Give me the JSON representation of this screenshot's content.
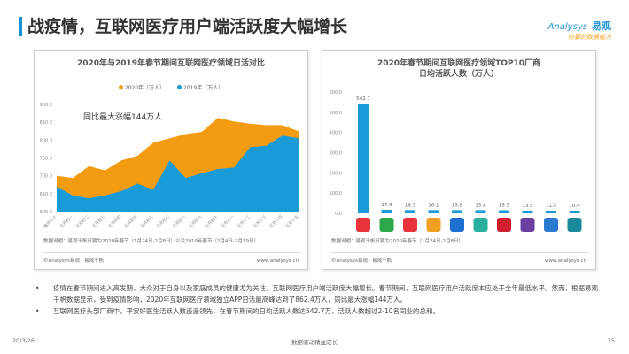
{
  "title": "战疫情，互联网医疗用户端活跃度大幅增长",
  "logo": {
    "line1": "Analysys",
    "brand": "易观",
    "tagline": "你要的数据能力"
  },
  "colors": {
    "accent": "#1a8fd6",
    "series_2020": "#f39c12",
    "series_2019": "#1a9ad6",
    "bar": "#1a9ad6"
  },
  "chart_data": [
    {
      "type": "area",
      "title": "2020年与2019年春节期间互联网医疗领域日活对比",
      "categories": [
        "腊月三十",
        "正月初一",
        "正月初二",
        "正月初三",
        "正月初四",
        "正月初五",
        "正月初六",
        "正月初七",
        "正月初八",
        "正月初九",
        "正月初十",
        "正月十一",
        "正月十二",
        "正月十三",
        "正月十四",
        "正月十五"
      ],
      "series": [
        {
          "name": "2020年（万人）",
          "values": [
            700,
            694,
            727,
            715,
            743,
            756,
            793,
            805,
            817,
            823,
            862.4,
            852,
            846,
            842,
            842,
            825
          ]
        },
        {
          "name": "2019年（万人）",
          "values": [
            670,
            645,
            637,
            645,
            657,
            678,
            661,
            743,
            694,
            707,
            719,
            723,
            780,
            784,
            813,
            805
          ]
        }
      ],
      "ylim": [
        600,
        900
      ],
      "yticks": [
        "600.0",
        "650.0",
        "700.0",
        "750.0",
        "800.0",
        "850.0",
        "900.0"
      ],
      "annotation": "同比最大涨幅144万人",
      "legend": "top",
      "grid": false,
      "note": "数据说明：易观千帆日期为2020年春节（1月24日-2月8日）以及2019年春节（2月4日-2月19日）",
      "source": "©Analysys易观 · 易观千帆",
      "url": "www.analysys.cn"
    },
    {
      "type": "bar",
      "title": "2020年春节期间互联网医疗领域TOP10厂商",
      "subtitle": "日均活跃人数（万人）",
      "values": [
        542.7,
        17.4,
        16.3,
        16.1,
        15.8,
        15.8,
        15.5,
        13.5,
        11.5,
        10.4
      ],
      "labels": [
        "542.7",
        "17.4",
        "16.3",
        "16.1",
        "15.8",
        "15.8",
        "15.5",
        "13.5",
        "11.5",
        "10.4"
      ],
      "icons": [
        {
          "name": "app-icon-1",
          "color": "#e8333b"
        },
        {
          "name": "app-icon-2",
          "color": "#2aa84a"
        },
        {
          "name": "app-icon-3",
          "color": "#e8333b"
        },
        {
          "name": "app-icon-4",
          "color": "#f0a020"
        },
        {
          "name": "app-icon-5",
          "color": "#1e6fd0"
        },
        {
          "name": "app-icon-6",
          "color": "#2bb0a0"
        },
        {
          "name": "app-icon-7",
          "color": "#d02030"
        },
        {
          "name": "app-icon-8",
          "color": "#6a3fa0"
        },
        {
          "name": "app-icon-9",
          "color": "#2a7bd0"
        },
        {
          "name": "app-icon-10",
          "color": "#1a8a9a"
        }
      ],
      "ylim": [
        0,
        600
      ],
      "yticks": [
        "0.0",
        "100.0",
        "200.0",
        "300.0",
        "400.0",
        "500.0",
        "600.0"
      ],
      "note": "数据说明：易观千帆日期为2020年春节（1月24日-2月8日）",
      "source": "©Analysys易观 · 易观千帆",
      "url": "www.analysys.cn"
    }
  ],
  "bullets": [
    "疫情在春节期间进入高发期，大众对于自身以及家庭成员的健康尤为关注，互联网医疗用户端活跃度大幅增长。春节期间，互联网医疗用户活跃度本应处于全年最低水平。然而，根据易观千帆数据显示，受到疫情影响，2020年互联网医疗领域独立APP日活最高峰达到了862.4万人，同比最大涨幅144万人。",
    "互联网医疗头部厂商中，平安好医生活跃人数遥遥领先，在春节期间的日均活跃人数达542.7万，活跃人数超过2-10名同业的总和。"
  ],
  "footer": {
    "date": "20/3/26",
    "slogan": "数据驱动精益成长",
    "page": "15"
  }
}
